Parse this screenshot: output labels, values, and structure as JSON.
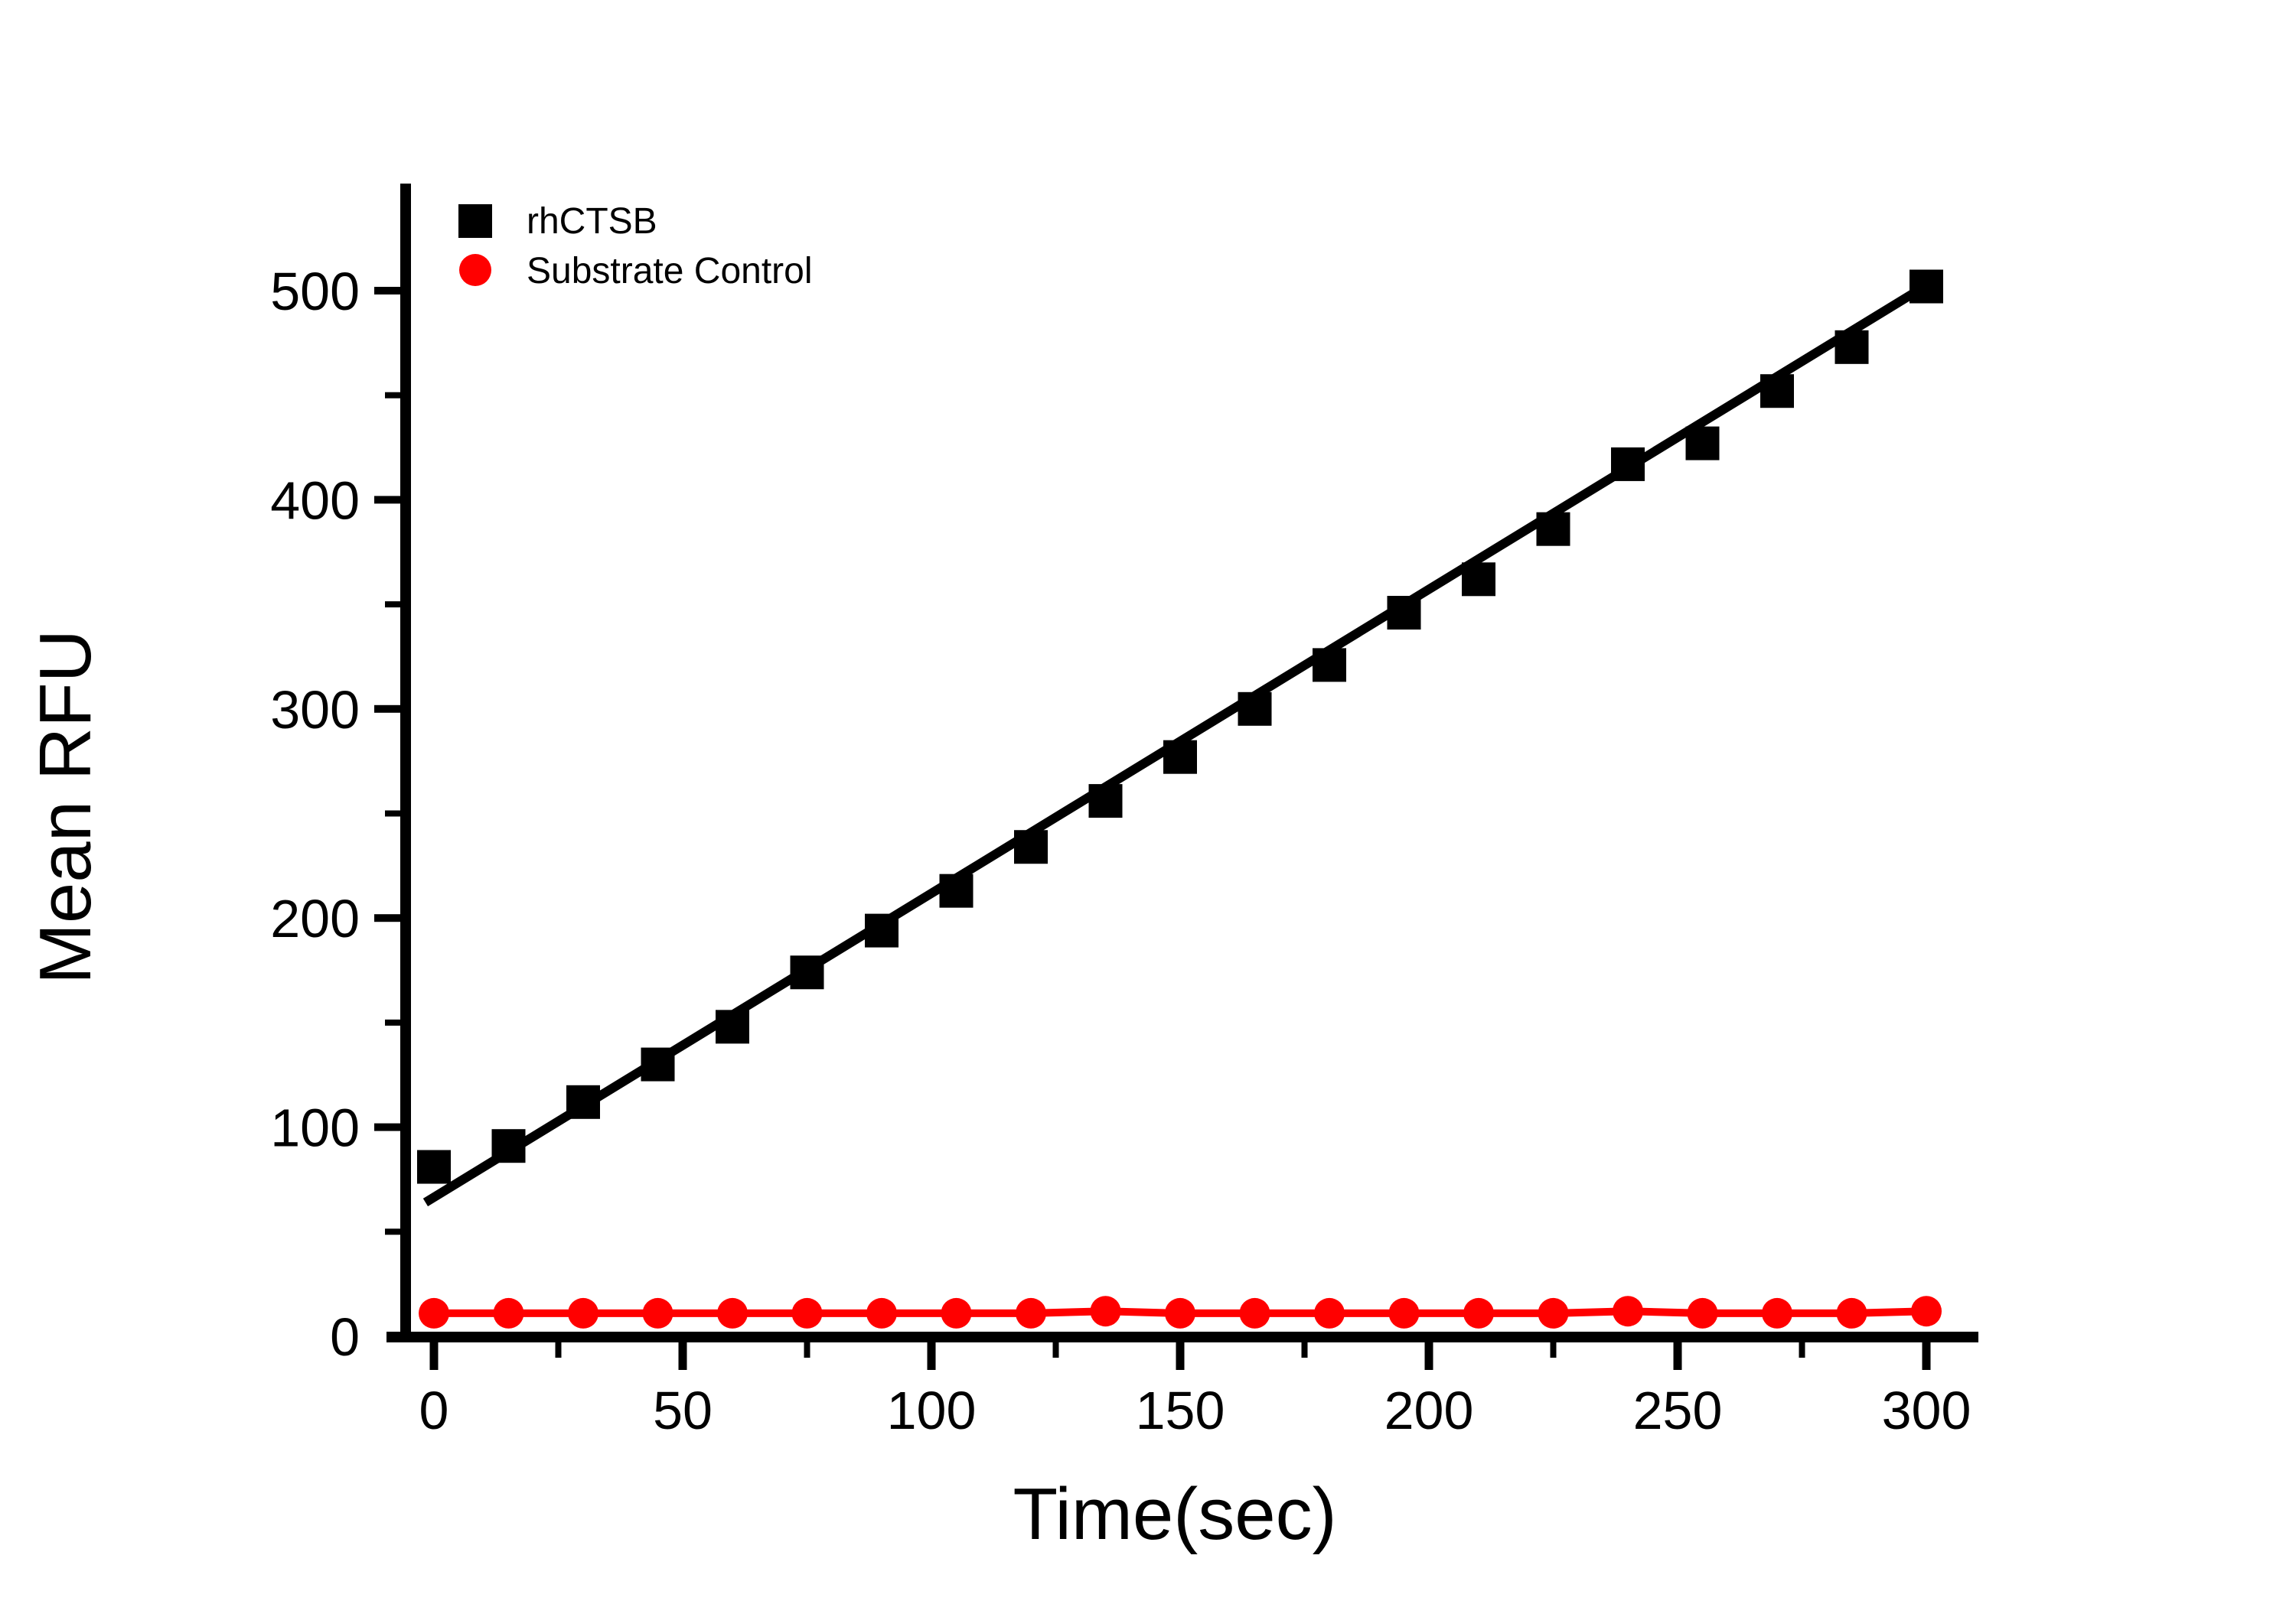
{
  "figure": {
    "background": "#FFFFFF",
    "axis_color": "#000000"
  },
  "chart_data": {
    "type": "scatter",
    "title": "",
    "xlabel": "Time(sec)",
    "ylabel": "Mean RFU",
    "grid": false,
    "x": [
      0,
      15,
      30,
      45,
      60,
      75,
      90,
      105,
      120,
      135,
      150,
      165,
      180,
      195,
      210,
      225,
      240,
      255,
      270,
      285,
      300
    ],
    "series": [
      {
        "name": "rhCTSB",
        "marker": "square",
        "color": "#000000",
        "connected": false,
        "values": [
          81,
          91,
          112,
          130,
          148,
          174,
          194,
          213,
          234,
          256,
          277,
          300,
          321,
          346,
          362,
          386,
          417,
          427,
          452,
          473,
          502
        ]
      },
      {
        "name": "Substrate Control",
        "marker": "circle",
        "color": "#FF0000",
        "connected": true,
        "values": [
          11,
          11,
          11,
          11,
          11,
          11,
          11,
          11,
          11,
          12,
          11,
          11,
          11,
          11,
          11,
          11,
          12,
          11,
          11,
          11,
          12
        ]
      }
    ],
    "fit_line": {
      "for_series": "rhCTSB",
      "color": "#000000",
      "x": [
        -1.7,
        300.6
      ],
      "y": [
        64,
        503.4
      ]
    },
    "axes": {
      "x": {
        "label": "Time(sec)",
        "range": [
          -10,
          310
        ],
        "major_ticks": [
          0,
          50,
          100,
          150,
          200,
          250,
          300
        ],
        "major_tick_labels": [
          "0",
          "50",
          "100",
          "150",
          "200",
          "250",
          "300"
        ],
        "minor_ticks": [
          25,
          75,
          125,
          175,
          225,
          275
        ]
      },
      "y": {
        "label": "Mean RFU",
        "range": [
          0,
          550
        ],
        "major_ticks": [
          0,
          100,
          200,
          300,
          400,
          500
        ],
        "major_tick_labels": [
          "0",
          "100",
          "200",
          "300",
          "400",
          "500"
        ],
        "minor_ticks": [
          50,
          150,
          250,
          350,
          450
        ]
      }
    },
    "legend": {
      "position": "inside-top-left",
      "entries": [
        {
          "label": "rhCTSB",
          "marker": "square",
          "color": "#000000"
        },
        {
          "label": "Substrate Control",
          "marker": "circle",
          "color": "#FF0000"
        }
      ]
    }
  }
}
